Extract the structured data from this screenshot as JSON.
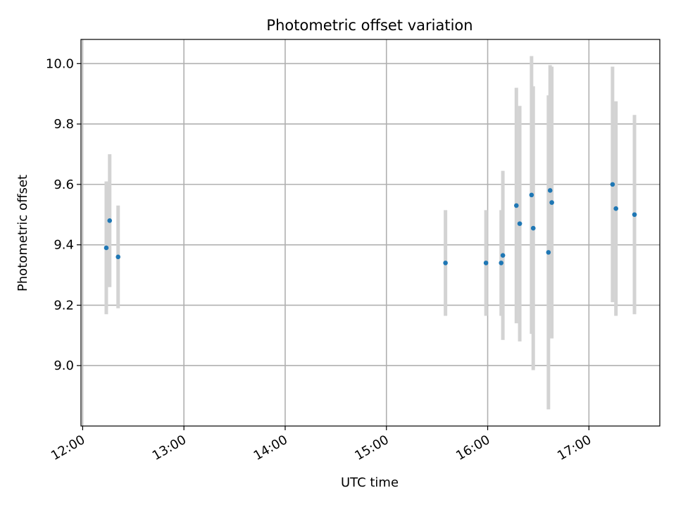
{
  "chart_data": {
    "type": "scatter",
    "title": "Photometric offset variation",
    "xlabel": "UTC time",
    "ylabel": "Photometric offset",
    "grid": true,
    "x_ticks": [
      "12:00",
      "13:00",
      "14:00",
      "15:00",
      "16:00",
      "17:00"
    ],
    "y_ticks": [
      "9.0",
      "9.2",
      "9.4",
      "9.6",
      "9.8",
      "10.0"
    ],
    "xlim": [
      "11:59",
      "17:42"
    ],
    "ylim": [
      8.8,
      10.08
    ],
    "colors": {
      "point": "#1f77b4",
      "error_bar": "#d3d3d3",
      "grid": "#b0b0b0"
    },
    "series": [
      {
        "points": [
          {
            "x": "12:14",
            "y": 9.39,
            "err": 0.22
          },
          {
            "x": "12:16",
            "y": 9.48,
            "err": 0.22
          },
          {
            "x": "12:21",
            "y": 9.36,
            "err": 0.17
          },
          {
            "x": "15:35",
            "y": 9.34,
            "err": 0.175
          },
          {
            "x": "15:59",
            "y": 9.34,
            "err": 0.175
          },
          {
            "x": "16:08",
            "y": 9.34,
            "err": 0.175
          },
          {
            "x": "16:09",
            "y": 9.365,
            "err": 0.28
          },
          {
            "x": "16:17",
            "y": 9.53,
            "err": 0.39
          },
          {
            "x": "16:19",
            "y": 9.47,
            "err": 0.39
          },
          {
            "x": "16:26",
            "y": 9.565,
            "err": 0.46
          },
          {
            "x": "16:27",
            "y": 9.455,
            "err": 0.47
          },
          {
            "x": "16:36",
            "y": 9.375,
            "err": 0.52
          },
          {
            "x": "16:37",
            "y": 9.58,
            "err": 0.415
          },
          {
            "x": "16:38",
            "y": 9.54,
            "err": 0.45
          },
          {
            "x": "17:14",
            "y": 9.6,
            "err": 0.39
          },
          {
            "x": "17:16",
            "y": 9.52,
            "err": 0.355
          },
          {
            "x": "17:27",
            "y": 9.5,
            "err": 0.33
          }
        ]
      }
    ]
  }
}
